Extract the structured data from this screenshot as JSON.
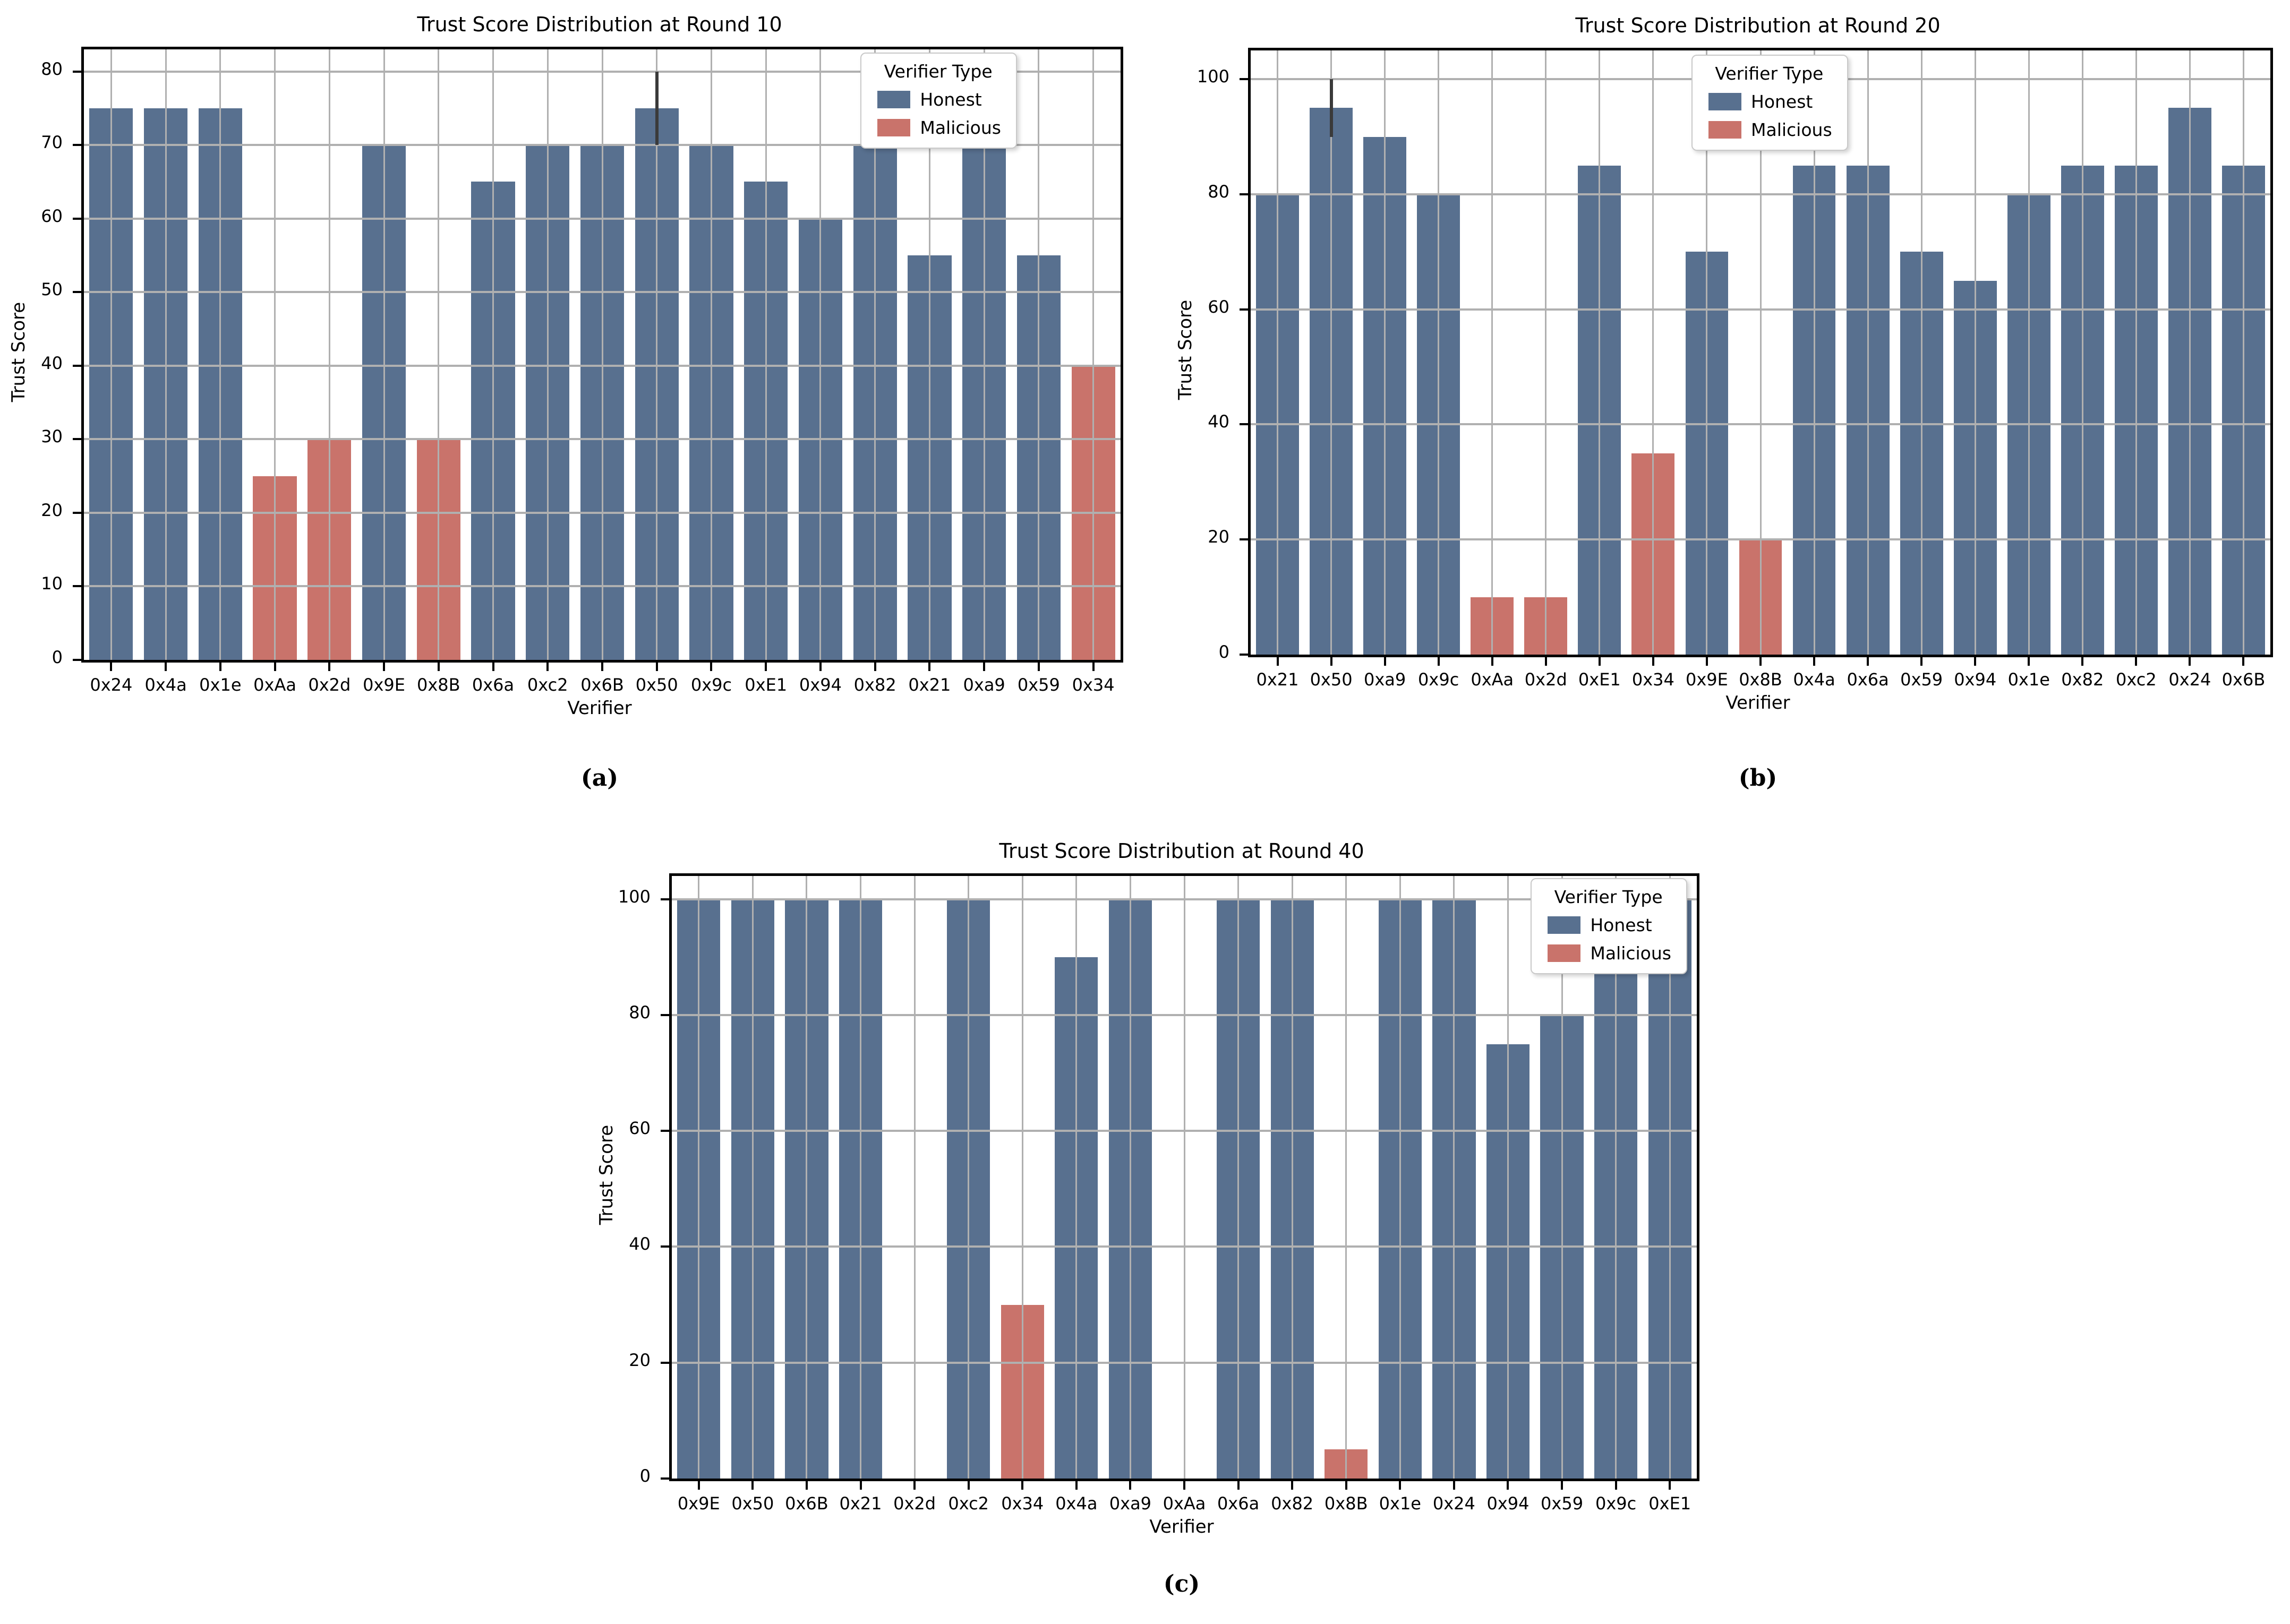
{
  "figure": {
    "captions": {
      "a": "(a)",
      "b": "(b)",
      "c": "(c)"
    },
    "colors": {
      "honest": "#58708F",
      "malicious": "#C9736B",
      "grid": "#B0B0B0",
      "error_bar": "#3A3A3A",
      "spine": "#000000",
      "legend_border": "#C9C9C9"
    }
  },
  "chart_data": [
    {
      "id": "a",
      "type": "bar",
      "title": "Trust Score Distribution at Round 10",
      "xlabel": "Verifier",
      "ylabel": "Trust Score",
      "ylim": [
        0,
        83
      ],
      "yticks": [
        0,
        10,
        20,
        30,
        40,
        50,
        60,
        70,
        80
      ],
      "grid": true,
      "legend": {
        "title": "Verifier Type",
        "entries": [
          "Honest",
          "Malicious"
        ],
        "position": "upper right"
      },
      "categories": [
        "0x24",
        "0x4a",
        "0x1e",
        "0xAa",
        "0x2d",
        "0x9E",
        "0x8B",
        "0x6a",
        "0xc2",
        "0x6B",
        "0x50",
        "0x9c",
        "0xE1",
        "0x94",
        "0x82",
        "0x21",
        "0xa9",
        "0x59",
        "0x34"
      ],
      "values": [
        75,
        75,
        75,
        25,
        30,
        70,
        30,
        65,
        70,
        70,
        75,
        70,
        65,
        60,
        70,
        55,
        70,
        55,
        40
      ],
      "types": [
        "honest",
        "honest",
        "honest",
        "malicious",
        "malicious",
        "honest",
        "malicious",
        "honest",
        "honest",
        "honest",
        "honest",
        "honest",
        "honest",
        "honest",
        "honest",
        "honest",
        "honest",
        "honest",
        "malicious"
      ],
      "error_bars": [
        {
          "category": "0x50",
          "low": 70,
          "high": 80
        }
      ]
    },
    {
      "id": "b",
      "type": "bar",
      "title": "Trust Score Distribution at Round 20",
      "xlabel": "Verifier",
      "ylabel": "Trust Score",
      "ylim": [
        0,
        105
      ],
      "yticks": [
        0,
        20,
        40,
        60,
        80,
        100
      ],
      "grid": true,
      "legend": {
        "title": "Verifier Type",
        "entries": [
          "Honest",
          "Malicious"
        ],
        "position": "upper center"
      },
      "categories": [
        "0x21",
        "0x50",
        "0xa9",
        "0x9c",
        "0xAa",
        "0x2d",
        "0xE1",
        "0x34",
        "0x9E",
        "0x8B",
        "0x4a",
        "0x6a",
        "0x59",
        "0x94",
        "0x1e",
        "0x82",
        "0xc2",
        "0x24",
        "0x6B"
      ],
      "values": [
        80,
        95,
        90,
        80,
        10,
        10,
        85,
        35,
        70,
        20,
        85,
        85,
        70,
        65,
        80,
        85,
        85,
        95,
        85
      ],
      "types": [
        "honest",
        "honest",
        "honest",
        "honest",
        "malicious",
        "malicious",
        "honest",
        "malicious",
        "honest",
        "malicious",
        "honest",
        "honest",
        "honest",
        "honest",
        "honest",
        "honest",
        "honest",
        "honest",
        "honest"
      ],
      "error_bars": [
        {
          "category": "0x50",
          "low": 90,
          "high": 100
        }
      ]
    },
    {
      "id": "c",
      "type": "bar",
      "title": "Trust Score Distribution at Round 40",
      "xlabel": "Verifier",
      "ylabel": "Trust Score",
      "ylim": [
        0,
        104
      ],
      "yticks": [
        0,
        20,
        40,
        60,
        80,
        100
      ],
      "grid": true,
      "legend": {
        "title": "Verifier Type",
        "entries": [
          "Honest",
          "Malicious"
        ],
        "position": "upper right"
      },
      "categories": [
        "0x9E",
        "0x50",
        "0x6B",
        "0x21",
        "0x2d",
        "0xc2",
        "0x34",
        "0x4a",
        "0xa9",
        "0xAa",
        "0x6a",
        "0x82",
        "0x8B",
        "0x1e",
        "0x24",
        "0x94",
        "0x59",
        "0x9c",
        "0xE1"
      ],
      "values": [
        100,
        100,
        100,
        100,
        0,
        100,
        30,
        90,
        100,
        0,
        100,
        100,
        5,
        100,
        100,
        75,
        80,
        90,
        100
      ],
      "types": [
        "honest",
        "honest",
        "honest",
        "honest",
        "malicious",
        "honest",
        "malicious",
        "honest",
        "honest",
        "malicious",
        "honest",
        "honest",
        "malicious",
        "honest",
        "honest",
        "honest",
        "honest",
        "honest",
        "honest"
      ],
      "error_bars": []
    }
  ]
}
